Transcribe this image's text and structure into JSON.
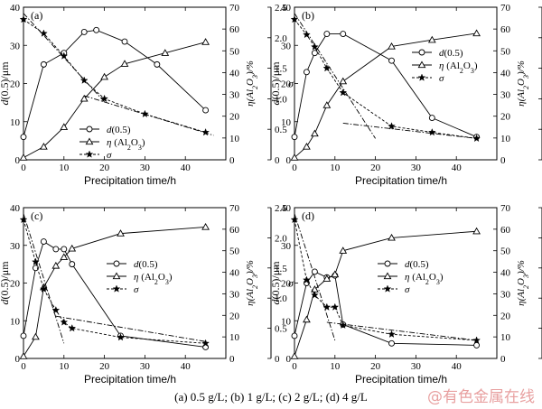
{
  "figure": {
    "caption": "(a) 0.5 g/L; (b) 1 g/L; (c) 2 g/L; (d) 4 g/L",
    "watermark": "@有色金属在线"
  },
  "chart_data": [
    {
      "type": "line",
      "panel_label": "(a)",
      "xlabel": "Precipitation time/h",
      "ylabel_left": "d(0.5)/μm",
      "ylabel_right_eta": "η(Al2O3)/%",
      "ylabel_right_sigma": "σ",
      "xlim": [
        0,
        50
      ],
      "ylim_left": [
        0,
        40
      ],
      "ylim_eta": [
        0,
        70
      ],
      "ylim_sigma": [
        0,
        2.5
      ],
      "xticks": [
        0,
        10,
        20,
        30,
        40
      ],
      "yticks_left": [
        0,
        10,
        20,
        30,
        40
      ],
      "yticks_eta": [
        0,
        10,
        20,
        30,
        40,
        50,
        60,
        70
      ],
      "yticks_sigma": [
        "0",
        "0.5",
        "1.0",
        "1.5",
        "2.0",
        "2.5"
      ],
      "legend": [
        "d(0.5)",
        "η (Al2O3)",
        "σ"
      ],
      "legend_position": "bottom-left",
      "series": [
        {
          "name": "d(0.5)",
          "axis": "left",
          "marker": "circle",
          "x": [
            0,
            5,
            10,
            15,
            18,
            25,
            33,
            45
          ],
          "y": [
            6,
            25,
            28,
            33.5,
            34,
            31,
            25,
            13
          ]
        },
        {
          "name": "η (Al2O3)",
          "axis": "eta",
          "marker": "triangle",
          "x": [
            0,
            5,
            10,
            15,
            20,
            25,
            35,
            45
          ],
          "y": [
            1,
            6,
            15,
            28,
            38,
            44,
            49,
            54
          ]
        },
        {
          "name": "σ",
          "axis": "sigma",
          "marker": "star",
          "x": [
            0,
            5,
            10,
            15,
            20,
            30,
            45
          ],
          "y": [
            2.3,
            2.07,
            1.7,
            1.3,
            1.0,
            0.75,
            0.45
          ]
        }
      ],
      "fit_lines": [
        {
          "axis": "sigma",
          "x": [
            0,
            20
          ],
          "y": [
            2.4,
            0.95
          ]
        },
        {
          "axis": "sigma",
          "x": [
            15,
            47
          ],
          "y": [
            1.05,
            0.4
          ]
        }
      ]
    },
    {
      "type": "line",
      "panel_label": "(b)",
      "xlabel": "Precipitation time/h",
      "ylabel_left": "d(0.5)/μm",
      "ylabel_right_eta": "η(Al2O3)/%",
      "ylabel_right_sigma": "σ",
      "xlim": [
        0,
        50
      ],
      "ylim_left": [
        0,
        40
      ],
      "ylim_eta": [
        0,
        70
      ],
      "ylim_sigma": [
        0,
        2.5
      ],
      "xticks": [
        0,
        10,
        20,
        30,
        40
      ],
      "yticks_left": [
        0,
        10,
        20,
        30,
        40
      ],
      "yticks_eta": [
        0,
        10,
        20,
        30,
        40,
        50,
        60,
        70
      ],
      "yticks_sigma": [
        "0",
        "0.5",
        "1.0",
        "1.5",
        "2.0",
        "2.5"
      ],
      "legend": [
        "d(0.5)",
        "η (Al2O3)",
        "σ"
      ],
      "legend_position": "center",
      "series": [
        {
          "name": "d(0.5)",
          "axis": "left",
          "marker": "circle",
          "x": [
            0,
            3,
            5,
            8,
            12,
            24,
            34,
            45
          ],
          "y": [
            6,
            23,
            28,
            33,
            33,
            26,
            11,
            6
          ]
        },
        {
          "name": "η (Al2O3)",
          "axis": "eta",
          "marker": "triangle",
          "x": [
            0,
            3,
            5,
            8,
            12,
            24,
            34,
            45
          ],
          "y": [
            1,
            6,
            12,
            25,
            36,
            52,
            55,
            58
          ]
        },
        {
          "name": "σ",
          "axis": "sigma",
          "marker": "star",
          "x": [
            0,
            3,
            5,
            8,
            12,
            24,
            34,
            45
          ],
          "y": [
            2.3,
            2.05,
            1.85,
            1.5,
            1.1,
            0.55,
            0.45,
            0.35
          ]
        }
      ],
      "fit_lines": [
        {
          "axis": "sigma",
          "x": [
            0,
            20
          ],
          "y": [
            2.4,
            0.35
          ]
        },
        {
          "axis": "sigma",
          "x": [
            12,
            45
          ],
          "y": [
            0.6,
            0.35
          ]
        }
      ]
    },
    {
      "type": "line",
      "panel_label": "(c)",
      "xlabel": "Precipitation time/h",
      "ylabel_left": "d(0.5)/μm",
      "ylabel_right_eta": "η(Al2O3)/%",
      "ylabel_right_sigma": "σ",
      "xlim": [
        0,
        50
      ],
      "ylim_left": [
        0,
        40
      ],
      "ylim_eta": [
        0,
        70
      ],
      "ylim_sigma": [
        0,
        2.5
      ],
      "xticks": [
        0,
        10,
        20,
        30,
        40
      ],
      "yticks_left": [
        0,
        10,
        20,
        30,
        40
      ],
      "yticks_eta": [
        0,
        10,
        20,
        30,
        40,
        50,
        60,
        70
      ],
      "yticks_sigma": [
        "0",
        "0.5",
        "1.0",
        "1.5",
        "2.0",
        "2.5"
      ],
      "legend": [
        "d(0.5)",
        "η (Al2O3)",
        "σ"
      ],
      "legend_position": "top-right",
      "series": [
        {
          "name": "d(0.5)",
          "axis": "left",
          "marker": "circle",
          "x": [
            0,
            3,
            5,
            8,
            10,
            12,
            24,
            45
          ],
          "y": [
            6,
            24,
            31,
            29,
            29,
            25,
            6,
            3
          ]
        },
        {
          "name": "η (Al2O3)",
          "axis": "eta",
          "marker": "triangle",
          "x": [
            0,
            3,
            5,
            8,
            10,
            12,
            24,
            45
          ],
          "y": [
            1,
            10,
            33,
            43,
            47,
            51,
            58,
            61
          ]
        },
        {
          "name": "σ",
          "axis": "sigma",
          "marker": "star",
          "x": [
            0,
            3,
            5,
            8,
            10,
            12,
            24,
            45
          ],
          "y": [
            2.3,
            1.6,
            1.15,
            0.8,
            0.6,
            0.5,
            0.35,
            0.25
          ]
        }
      ],
      "fit_lines": [
        {
          "axis": "sigma",
          "x": [
            0,
            10
          ],
          "y": [
            2.4,
            0.25
          ]
        },
        {
          "axis": "sigma",
          "x": [
            8,
            45
          ],
          "y": [
            0.7,
            0.28
          ]
        }
      ]
    },
    {
      "type": "line",
      "panel_label": "(d)",
      "xlabel": "Precipitation time/h",
      "ylabel_left": "d(0.5)/μm",
      "ylabel_right_eta": "η(Al2O3)/%",
      "ylabel_right_sigma": "σ",
      "xlim": [
        0,
        50
      ],
      "ylim_left": [
        0,
        40
      ],
      "ylim_eta": [
        0,
        70
      ],
      "ylim_sigma": [
        0,
        2.5
      ],
      "xticks": [
        0,
        10,
        20,
        30,
        40
      ],
      "yticks_left": [
        0,
        10,
        20,
        30,
        40
      ],
      "yticks_eta": [
        0,
        10,
        20,
        30,
        40,
        50,
        60,
        70
      ],
      "yticks_sigma": [
        "0",
        "0.5",
        "1.0",
        "1.5",
        "2.0",
        "2.5"
      ],
      "legend": [
        "d(0.5)",
        "η (Al2O3)",
        "σ"
      ],
      "legend_position": "top-right",
      "series": [
        {
          "name": "d(0.5)",
          "axis": "left",
          "marker": "circle",
          "x": [
            0,
            3,
            5,
            8,
            10,
            12,
            24,
            45
          ],
          "y": [
            6,
            20,
            23,
            21.5,
            22,
            9,
            4,
            3.5
          ]
        },
        {
          "name": "η (Al2O3)",
          "axis": "eta",
          "marker": "triangle",
          "x": [
            0,
            3,
            5,
            8,
            10,
            12,
            24,
            45
          ],
          "y": [
            1,
            18,
            32,
            37,
            39,
            50,
            56,
            59
          ]
        },
        {
          "name": "σ",
          "axis": "sigma",
          "marker": "star",
          "x": [
            0,
            3,
            5,
            8,
            10,
            12,
            24,
            45
          ],
          "y": [
            2.3,
            1.3,
            1.05,
            0.85,
            0.85,
            0.55,
            0.4,
            0.3
          ]
        }
      ],
      "fit_lines": [
        {
          "axis": "sigma",
          "x": [
            0,
            10
          ],
          "y": [
            2.4,
            0.3
          ]
        },
        {
          "axis": "sigma",
          "x": [
            8,
            45
          ],
          "y": [
            0.6,
            0.3
          ]
        }
      ]
    }
  ]
}
